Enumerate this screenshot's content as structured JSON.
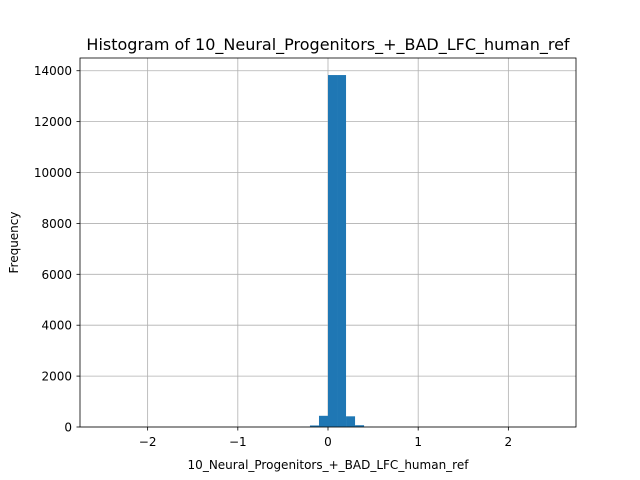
{
  "chart_data": {
    "type": "bar",
    "title": "Histogram of 10_Neural_Progenitors_+_BAD_LFC_human_ref",
    "xlabel": "10_Neural_Progenitors_+_BAD_LFC_human_ref",
    "ylabel": "Frequency",
    "xlim": [
      -2.75,
      2.75
    ],
    "ylim": [
      0,
      14500
    ],
    "xticks": [
      -2,
      -1,
      0,
      1,
      2
    ],
    "xtick_labels": [
      "−2",
      "−1",
      "0",
      "1",
      "2"
    ],
    "yticks": [
      0,
      2000,
      4000,
      6000,
      8000,
      10000,
      12000,
      14000
    ],
    "ytick_labels": [
      "0",
      "2000",
      "4000",
      "6000",
      "8000",
      "10000",
      "12000",
      "14000"
    ],
    "grid": true,
    "color": "#1f77b4",
    "bins": [
      {
        "x0": -0.3,
        "x1": -0.2,
        "count": 3
      },
      {
        "x0": -0.2,
        "x1": -0.1,
        "count": 60
      },
      {
        "x0": -0.1,
        "x1": 0.0,
        "count": 440
      },
      {
        "x0": 0.0,
        "x1": 0.1,
        "count": 13830
      },
      {
        "x0": 0.1,
        "x1": 0.2,
        "count": 13830
      },
      {
        "x0": 0.2,
        "x1": 0.3,
        "count": 420
      },
      {
        "x0": 0.3,
        "x1": 0.4,
        "count": 70
      },
      {
        "x0": 0.4,
        "x1": 0.5,
        "count": 3
      }
    ]
  }
}
